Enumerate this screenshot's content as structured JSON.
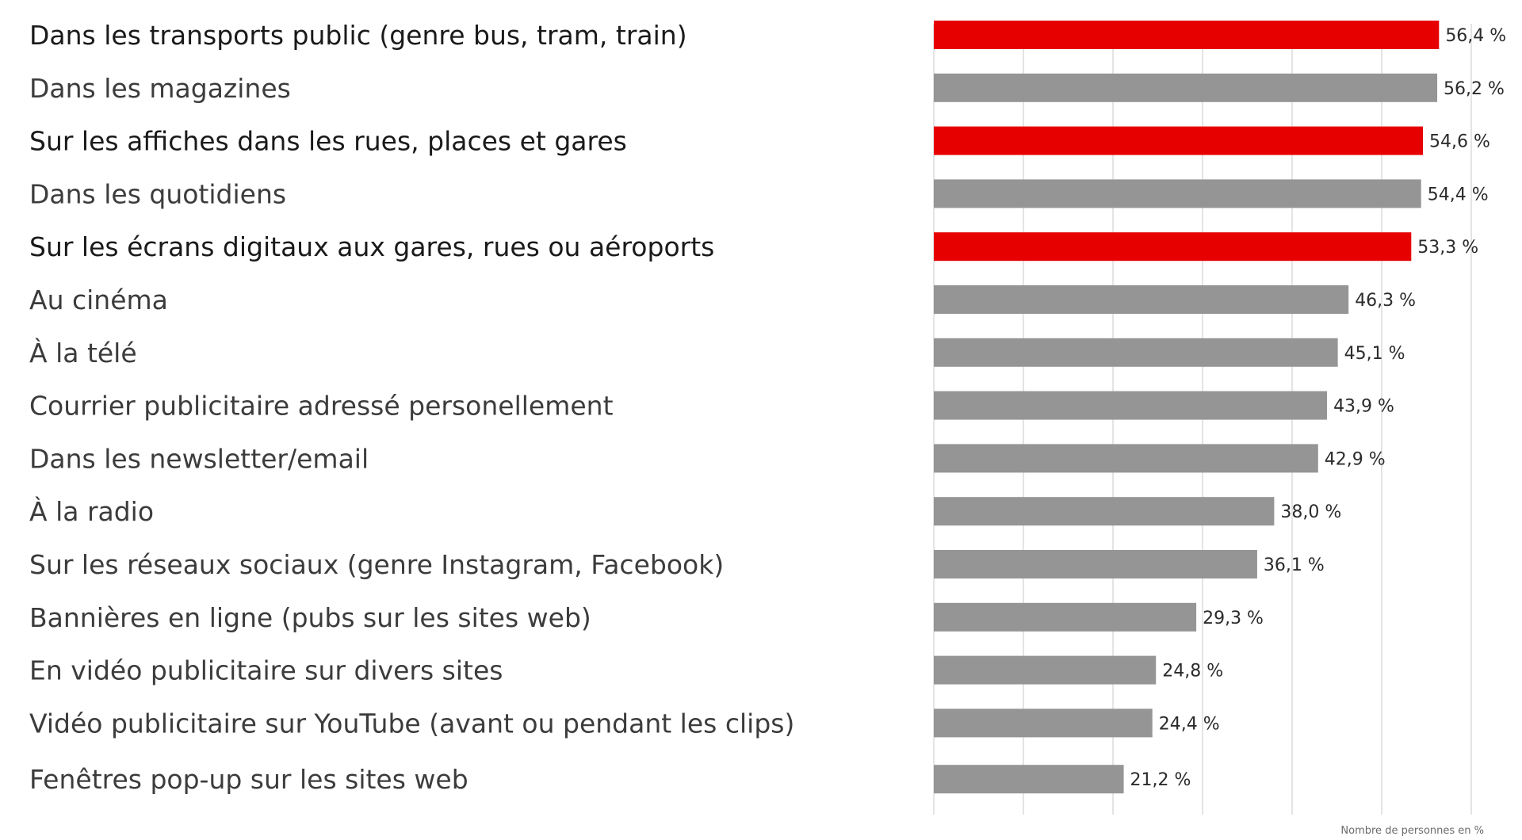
{
  "chart_data": {
    "type": "bar",
    "orientation": "horizontal",
    "categories": [
      "Dans les transports public (genre bus, tram, train)",
      "Dans les magazines",
      "Sur les affiches dans les rues, places et gares",
      "Dans les quotidiens",
      "Sur les écrans digitaux aux gares, rues ou aéroports",
      "Au cinéma",
      "À la télé",
      "Courrier publicitaire adressé personellement",
      "Dans les newsletter/email",
      "À la radio",
      "Sur les réseaux sociaux (genre Instagram, Facebook)",
      "Bannières en ligne (pubs sur les sites web)",
      "En vidéo publicitaire sur divers sites",
      "Vidéo publicitaire sur YouTube (avant ou pendant les clips)",
      "Fenêtres pop-up sur les sites web"
    ],
    "values": [
      56.4,
      56.2,
      54.6,
      54.4,
      53.3,
      46.3,
      45.1,
      43.9,
      42.9,
      38.0,
      36.1,
      29.3,
      24.8,
      24.4,
      21.2
    ],
    "value_labels": [
      "56,4 %",
      "56,2 %",
      "54,6 %",
      "54,4 %",
      "53,3 %",
      "46,3 %",
      "45,1 %",
      "43,9 %",
      "42,9 %",
      "38,0 %",
      "36,1 %",
      "29,3 %",
      "24,8 %",
      "24,4 %",
      "21,2 %"
    ],
    "highlighted": [
      true,
      false,
      true,
      false,
      true,
      false,
      false,
      false,
      false,
      false,
      false,
      false,
      false,
      false,
      false
    ],
    "colors": {
      "highlight": "#e60000",
      "default": "#959595",
      "grid": "#dcdcdc"
    },
    "xlim": [
      0,
      60
    ],
    "grid": true,
    "xlabel": "Nombre de personnes en %",
    "title": "",
    "ylabel": ""
  }
}
